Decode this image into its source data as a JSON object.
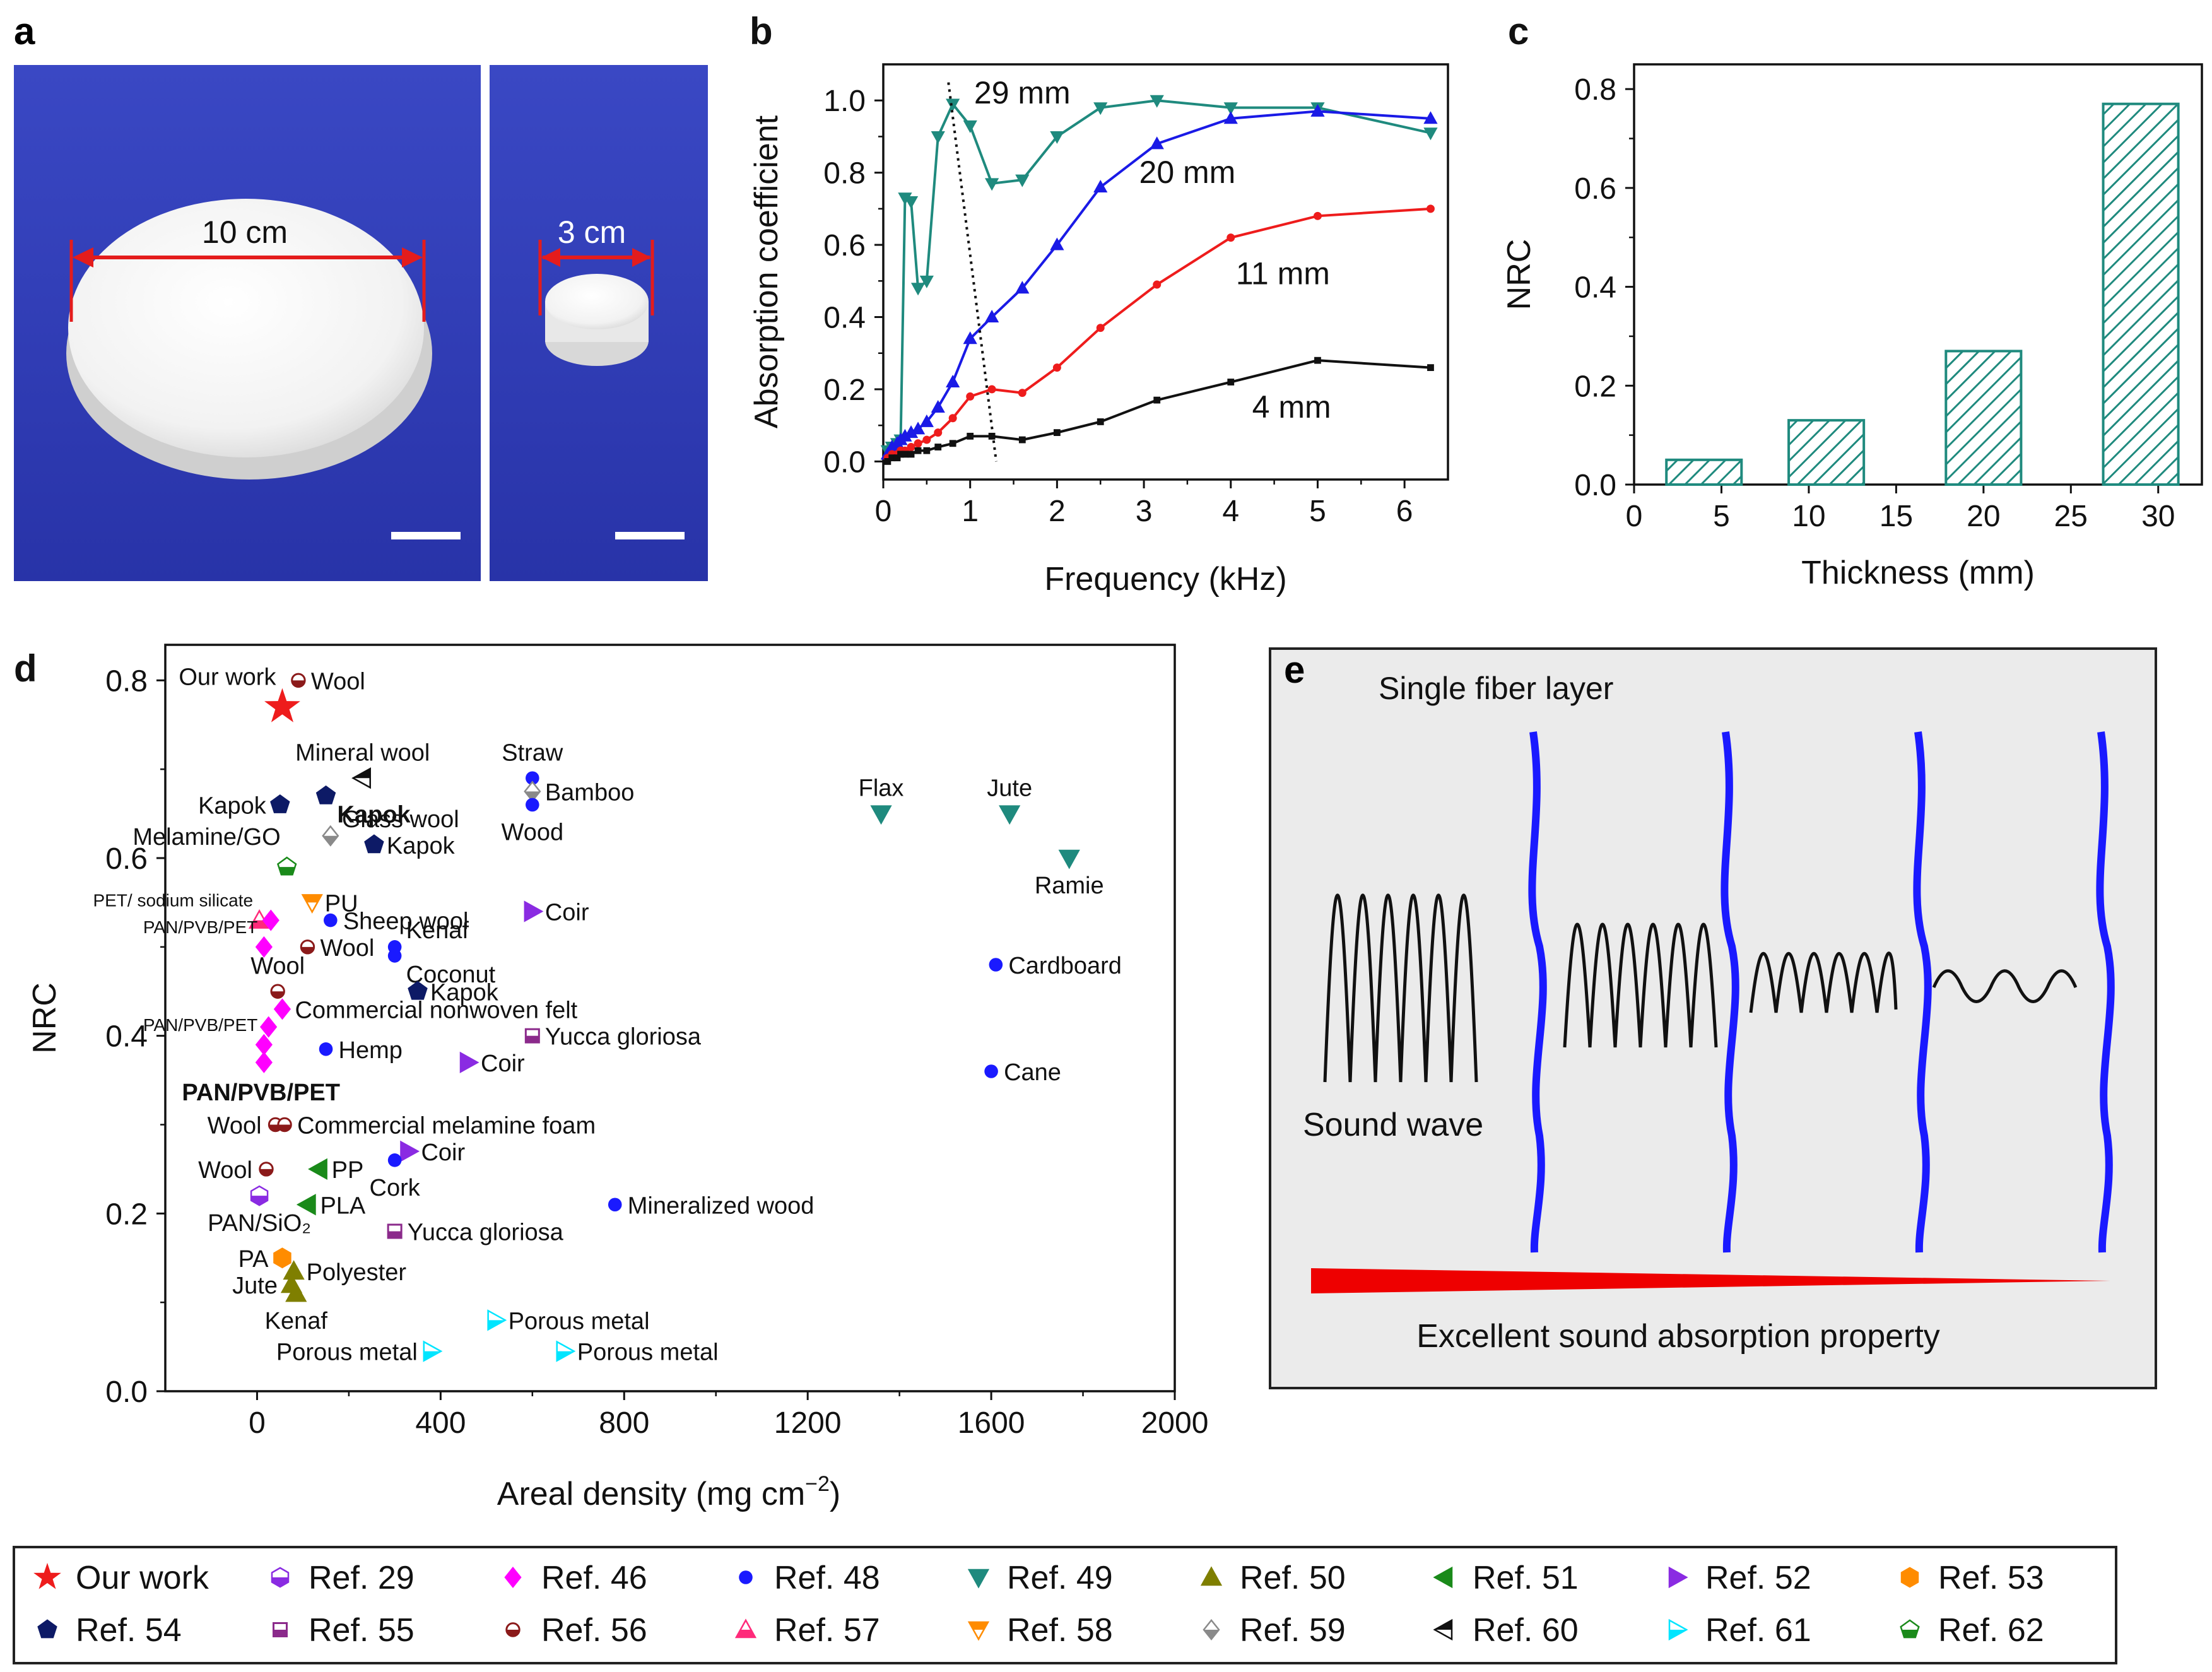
{
  "panels": {
    "a": {
      "label": "a",
      "photo_left_dimension": "10 cm",
      "photo_right_dimension": "3 cm"
    },
    "e": {
      "label": "e",
      "header": "Single fiber layer",
      "sound_wave_label": "Sound wave",
      "footer": "Excellent sound absorption property"
    }
  },
  "colors": {
    "cm29": "#1f8a7e",
    "cm20": "#1a1ae6",
    "cm11": "#ee1c1c",
    "cm4": "#111111",
    "teal": "#1f8a7e",
    "ref29": "#8a2be2",
    "ref46": "#ff00ff",
    "ref48": "#1a1aff",
    "ref49": "#1f8a7e",
    "ref50": "#7f7f00",
    "ref51": "#1a8a1a",
    "ref52": "#8a2be2",
    "ref53": "#ff8c00",
    "ref54": "#0d1a66",
    "ref55": "#8b2a8b",
    "ref56": "#8b1a1a",
    "ref57": "#ff2a7a",
    "ref58": "#ff8c00",
    "ref59": "#8a8a8a",
    "ref60": "#111111",
    "ref61": "#00e5ff",
    "ref62": "#1a8a1a",
    "star": "#ee1c1c",
    "fiber": "#1a1aff",
    "wedge": "#ee0000",
    "photo_bg": "#2f3db8"
  },
  "chart_data": [
    {
      "id": "b",
      "panel_label": "b",
      "type": "line",
      "xlabel": "Frequency (kHz)",
      "ylabel": "Absorption coefficient",
      "xlim": [
        0,
        6.5
      ],
      "ylim": [
        -0.05,
        1.1
      ],
      "xticks": [
        "0",
        "1",
        "2",
        "3",
        "4",
        "5",
        "6"
      ],
      "yticks": [
        "0.0",
        "0.2",
        "0.4",
        "0.6",
        "0.8",
        "1.0"
      ],
      "series": [
        {
          "name": "29 mm",
          "marker": "triangle-down",
          "x": [
            0.05,
            0.1,
            0.16,
            0.2,
            0.25,
            0.32,
            0.4,
            0.5,
            0.63,
            0.8,
            1.0,
            1.25,
            1.6,
            2.0,
            2.5,
            3.15,
            4.0,
            5.0,
            6.3
          ],
          "y": [
            0.03,
            0.04,
            0.05,
            0.06,
            0.73,
            0.72,
            0.48,
            0.5,
            0.9,
            0.99,
            0.93,
            0.77,
            0.78,
            0.9,
            0.98,
            1.0,
            0.98,
            0.98,
            0.91
          ]
        },
        {
          "name": "20 mm",
          "marker": "triangle-up",
          "x": [
            0.05,
            0.1,
            0.16,
            0.2,
            0.25,
            0.32,
            0.4,
            0.5,
            0.63,
            0.8,
            1.0,
            1.25,
            1.6,
            2.0,
            2.5,
            3.15,
            4.0,
            5.0,
            6.3
          ],
          "y": [
            0.02,
            0.04,
            0.05,
            0.06,
            0.07,
            0.08,
            0.09,
            0.11,
            0.15,
            0.22,
            0.34,
            0.4,
            0.48,
            0.6,
            0.76,
            0.88,
            0.95,
            0.97,
            0.95
          ]
        },
        {
          "name": "11 mm",
          "marker": "circle",
          "x": [
            0.05,
            0.1,
            0.16,
            0.2,
            0.25,
            0.32,
            0.4,
            0.5,
            0.63,
            0.8,
            1.0,
            1.25,
            1.6,
            2.0,
            2.5,
            3.15,
            4.0,
            5.0,
            6.3
          ],
          "y": [
            0.01,
            0.02,
            0.02,
            0.03,
            0.03,
            0.04,
            0.05,
            0.06,
            0.08,
            0.12,
            0.18,
            0.2,
            0.19,
            0.26,
            0.37,
            0.49,
            0.62,
            0.68,
            0.7
          ]
        },
        {
          "name": "4 mm",
          "marker": "square",
          "x": [
            0.05,
            0.1,
            0.16,
            0.2,
            0.25,
            0.32,
            0.4,
            0.5,
            0.63,
            0.8,
            1.0,
            1.25,
            1.6,
            2.0,
            2.5,
            3.15,
            4.0,
            5.0,
            6.3
          ],
          "y": [
            0.0,
            0.01,
            0.01,
            0.02,
            0.02,
            0.02,
            0.03,
            0.03,
            0.04,
            0.05,
            0.07,
            0.07,
            0.06,
            0.08,
            0.11,
            0.17,
            0.22,
            0.28,
            0.26
          ]
        }
      ],
      "series_labels": [
        "29 mm",
        "20 mm",
        "11 mm",
        "4 mm"
      ],
      "peak_trend_line": {
        "x": [
          0.75,
          1.3
        ],
        "y": [
          1.05,
          0.0
        ]
      }
    },
    {
      "id": "c",
      "panel_label": "c",
      "type": "bar",
      "xlabel": "Thickness (mm)",
      "ylabel": "NRC",
      "xlim": [
        0,
        32.5
      ],
      "ylim": [
        0,
        0.85
      ],
      "xticks": [
        "0",
        "5",
        "10",
        "15",
        "20",
        "25",
        "30"
      ],
      "yticks": [
        "0.0",
        "0.2",
        "0.4",
        "0.6",
        "0.8"
      ],
      "x": [
        4,
        11,
        20,
        29
      ],
      "values": [
        0.05,
        0.13,
        0.27,
        0.77
      ],
      "bar_width_data": 4.3,
      "pattern": "hatched"
    },
    {
      "id": "d",
      "panel_label": "d",
      "type": "scatter",
      "xlabel": "Areal density (mg cm",
      "xlabel_exponent": "−2",
      "xlabel_close": ")",
      "ylabel": "NRC",
      "xlim": [
        -200,
        2000
      ],
      "ylim": [
        0,
        0.84
      ],
      "xticks": [
        "0",
        "400",
        "800",
        "1200",
        "1600",
        "2000"
      ],
      "yticks": [
        "0.0",
        "0.2",
        "0.4",
        "0.6",
        "0.8"
      ],
      "points": [
        {
          "ref": "Our work",
          "shape": "star",
          "x": 55,
          "y": 0.77,
          "label": "Our work",
          "pos": "nw"
        },
        {
          "ref": "Ref. 56",
          "shape": "halfcircle",
          "x": 90,
          "y": 0.8,
          "label": "Wool",
          "pos": "e"
        },
        {
          "ref": "Ref. 60",
          "shape": "tri-left-open",
          "x": 230,
          "y": 0.69,
          "label": "Mineral wool",
          "pos": "n"
        },
        {
          "ref": "Ref. 54",
          "shape": "pentagon",
          "x": 50,
          "y": 0.66,
          "label": "Kapok",
          "pos": "w"
        },
        {
          "ref": "Ref. 54",
          "shape": "pentagon",
          "x": 150,
          "y": 0.67,
          "label": "Kapok",
          "pos": "se",
          "bold": true
        },
        {
          "ref": "Ref. 59",
          "shape": "diamond-half",
          "x": 160,
          "y": 0.625,
          "label": "Glass wool",
          "pos": "ne"
        },
        {
          "ref": "Ref. 54",
          "shape": "pentagon",
          "x": 255,
          "y": 0.615,
          "label": "Kapok",
          "pos": "e"
        },
        {
          "ref": "Ref. 48",
          "shape": "circle",
          "x": 600,
          "y": 0.69,
          "label": "Straw",
          "pos": "n"
        },
        {
          "ref": "Ref. 59",
          "shape": "diamond-half",
          "x": 600,
          "y": 0.675,
          "label": "Bamboo",
          "pos": "e"
        },
        {
          "ref": "Ref. 48",
          "shape": "circle",
          "x": 600,
          "y": 0.66,
          "label": "Wood",
          "pos": "s"
        },
        {
          "ref": "Ref. 49",
          "shape": "triangle-down",
          "x": 1360,
          "y": 0.65,
          "label": "Flax",
          "pos": "n"
        },
        {
          "ref": "Ref. 49",
          "shape": "triangle-down",
          "x": 1640,
          "y": 0.65,
          "label": "Jute",
          "pos": "n"
        },
        {
          "ref": "Ref. 49",
          "shape": "triangle-down",
          "x": 1770,
          "y": 0.6,
          "label": "Ramie",
          "pos": "s"
        },
        {
          "ref": "Ref. 62",
          "shape": "pentagon-half",
          "x": 65,
          "y": 0.59,
          "label": "Melamine/GO",
          "pos": "nw"
        },
        {
          "ref": "Ref. 57",
          "shape": "triangle-up-half",
          "x": 5,
          "y": 0.53,
          "label": "PET/ sodium silicate",
          "pos": "nw-small"
        },
        {
          "ref": "Ref. 46",
          "shape": "diamond",
          "x": 30,
          "y": 0.53,
          "label": "",
          "pos": "none"
        },
        {
          "ref": "Ref. 58",
          "shape": "tri-down-half",
          "x": 120,
          "y": 0.55,
          "label": "PU",
          "pos": "e"
        },
        {
          "ref": "Ref. 48",
          "shape": "circle",
          "x": 160,
          "y": 0.53,
          "label": "Sheep wool",
          "pos": "e"
        },
        {
          "ref": "Ref. 52",
          "shape": "triangle-right",
          "x": 600,
          "y": 0.54,
          "label": "Coir",
          "pos": "e"
        },
        {
          "ref": "Ref. 46",
          "shape": "diamond",
          "x": 15,
          "y": 0.5,
          "label": "PAN/PVB/PET",
          "pos": "nw-small"
        },
        {
          "ref": "Ref. 56",
          "shape": "halfcircle",
          "x": 110,
          "y": 0.5,
          "label": "Wool",
          "pos": "e"
        },
        {
          "ref": "Ref. 48",
          "shape": "circle",
          "x": 300,
          "y": 0.5,
          "label": "Kenaf",
          "pos": "ne"
        },
        {
          "ref": "Ref. 48",
          "shape": "circle",
          "x": 300,
          "y": 0.49,
          "label": "Coconut",
          "pos": "se"
        },
        {
          "ref": "Ref. 48",
          "shape": "circle",
          "x": 1610,
          "y": 0.48,
          "label": "Cardboard",
          "pos": "e"
        },
        {
          "ref": "Ref. 56",
          "shape": "halfcircle",
          "x": 45,
          "y": 0.45,
          "label": "Wool",
          "pos": "n"
        },
        {
          "ref": "Ref. 54",
          "shape": "pentagon",
          "x": 350,
          "y": 0.45,
          "label": "Kapok",
          "pos": "e"
        },
        {
          "ref": "Ref. 46",
          "shape": "diamond",
          "x": 55,
          "y": 0.43,
          "label": "Commercial nonwoven felt",
          "pos": "e"
        },
        {
          "ref": "Ref. 46",
          "shape": "diamond",
          "x": 25,
          "y": 0.41,
          "label": "",
          "pos": "none"
        },
        {
          "ref": "Ref. 55",
          "shape": "square-half",
          "x": 600,
          "y": 0.4,
          "label": "Yucca gloriosa",
          "pos": "e"
        },
        {
          "ref": "Ref. 48",
          "shape": "circle",
          "x": 150,
          "y": 0.385,
          "label": "Hemp",
          "pos": "e"
        },
        {
          "ref": "Ref. 46",
          "shape": "diamond",
          "x": 15,
          "y": 0.39,
          "label": "PAN/PVB/PET",
          "pos": "nw-small"
        },
        {
          "ref": "Ref. 52",
          "shape": "triangle-right",
          "x": 460,
          "y": 0.37,
          "label": "Coir",
          "pos": "e"
        },
        {
          "ref": "Ref. 46",
          "shape": "diamond",
          "x": 15,
          "y": 0.37,
          "label": "PAN/PVB/PET",
          "pos": "s-bold",
          "bold": true
        },
        {
          "ref": "Ref. 48",
          "shape": "circle",
          "x": 1600,
          "y": 0.36,
          "label": "Cane",
          "pos": "e"
        },
        {
          "ref": "Ref. 56",
          "shape": "halfcircle",
          "x": 40,
          "y": 0.3,
          "label": "Wool",
          "pos": "w"
        },
        {
          "ref": "Ref. 56",
          "shape": "halfcircle",
          "x": 60,
          "y": 0.3,
          "label": "Commercial melamine foam",
          "pos": "e"
        },
        {
          "ref": "Ref. 52",
          "shape": "triangle-right",
          "x": 330,
          "y": 0.27,
          "label": "Coir",
          "pos": "e"
        },
        {
          "ref": "Ref. 56",
          "shape": "halfcircle",
          "x": 20,
          "y": 0.25,
          "label": "Wool",
          "pos": "w"
        },
        {
          "ref": "Ref. 51",
          "shape": "triangle-left",
          "x": 135,
          "y": 0.25,
          "label": "PP",
          "pos": "e"
        },
        {
          "ref": "Ref. 48",
          "shape": "circle",
          "x": 300,
          "y": 0.26,
          "label": "Cork",
          "pos": "s"
        },
        {
          "ref": "Ref. 29",
          "shape": "hexagon-half",
          "x": 5,
          "y": 0.22,
          "label": "PAN/SiO₂",
          "pos": "s"
        },
        {
          "ref": "Ref. 51",
          "shape": "triangle-left",
          "x": 110,
          "y": 0.21,
          "label": "PLA",
          "pos": "e"
        },
        {
          "ref": "Ref. 48",
          "shape": "circle",
          "x": 780,
          "y": 0.21,
          "label": "Mineralized wood",
          "pos": "e"
        },
        {
          "ref": "Ref. 55",
          "shape": "square-half",
          "x": 300,
          "y": 0.18,
          "label": "Yucca gloriosa",
          "pos": "e"
        },
        {
          "ref": "Ref. 53",
          "shape": "hexagon",
          "x": 55,
          "y": 0.15,
          "label": "PA",
          "pos": "w"
        },
        {
          "ref": "Ref. 50",
          "shape": "triangle-up",
          "x": 80,
          "y": 0.135,
          "label": "Polyester",
          "pos": "e"
        },
        {
          "ref": "Ref. 50",
          "shape": "triangle-up",
          "x": 75,
          "y": 0.12,
          "label": "Jute",
          "pos": "w"
        },
        {
          "ref": "Ref. 50",
          "shape": "triangle-up",
          "x": 85,
          "y": 0.11,
          "label": "Kenaf",
          "pos": "s"
        },
        {
          "ref": "Ref. 61",
          "shape": "tri-right-half",
          "x": 520,
          "y": 0.08,
          "label": "Porous metal",
          "pos": "e"
        },
        {
          "ref": "Ref. 61",
          "shape": "tri-right-half",
          "x": 380,
          "y": 0.045,
          "label": "Porous metal",
          "pos": "w"
        },
        {
          "ref": "Ref. 61",
          "shape": "tri-right-half",
          "x": 670,
          "y": 0.045,
          "label": "Porous metal",
          "pos": "e"
        }
      ]
    }
  ],
  "legend": [
    {
      "label": "Our work",
      "shape": "star",
      "color": "star"
    },
    {
      "label": "Ref. 29",
      "shape": "hexagon-half",
      "color": "ref29"
    },
    {
      "label": "Ref. 46",
      "shape": "diamond",
      "color": "ref46"
    },
    {
      "label": "Ref. 48",
      "shape": "circle",
      "color": "ref48"
    },
    {
      "label": "Ref. 49",
      "shape": "triangle-down",
      "color": "ref49"
    },
    {
      "label": "Ref. 50",
      "shape": "triangle-up",
      "color": "ref50"
    },
    {
      "label": "Ref. 51",
      "shape": "triangle-left",
      "color": "ref51"
    },
    {
      "label": "Ref. 52",
      "shape": "triangle-right",
      "color": "ref52"
    },
    {
      "label": "Ref. 53",
      "shape": "hexagon",
      "color": "ref53"
    },
    {
      "label": "Ref. 54",
      "shape": "pentagon",
      "color": "ref54"
    },
    {
      "label": "Ref. 55",
      "shape": "square-half",
      "color": "ref55"
    },
    {
      "label": "Ref. 56",
      "shape": "halfcircle",
      "color": "ref56"
    },
    {
      "label": "Ref. 57",
      "shape": "triangle-up-half",
      "color": "ref57"
    },
    {
      "label": "Ref. 58",
      "shape": "tri-down-half",
      "color": "ref58"
    },
    {
      "label": "Ref. 59",
      "shape": "diamond-half",
      "color": "ref59"
    },
    {
      "label": "Ref. 60",
      "shape": "tri-left-open",
      "color": "ref60"
    },
    {
      "label": "Ref. 61",
      "shape": "tri-right-half",
      "color": "ref61"
    },
    {
      "label": "Ref. 62",
      "shape": "pentagon-half",
      "color": "ref62"
    }
  ]
}
